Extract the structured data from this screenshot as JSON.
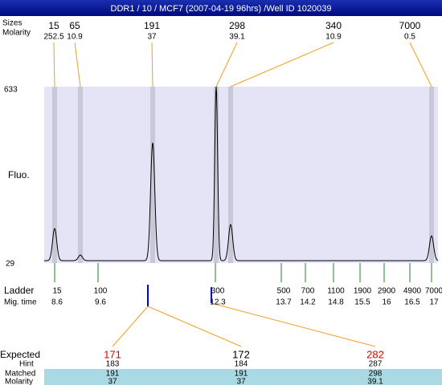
{
  "header": {
    "title": "DDR1 / 10 / MCF7 (2007-04-19 96hrs) /Well ID 1020039"
  },
  "peaks": {
    "size_label": "Sizes",
    "molarity_label": "Molarity",
    "items": [
      {
        "size": 15,
        "molarity": 252.5
      },
      {
        "size": 65,
        "molarity": 10.9
      },
      {
        "size": 191,
        "molarity": 37
      },
      {
        "size": 298,
        "molarity": 39.1
      },
      {
        "size": 340,
        "molarity": 10.9
      },
      {
        "size": 7000,
        "molarity": 0.5
      }
    ]
  },
  "y_axis": {
    "label": "Fluo.",
    "max": 633,
    "min": 29
  },
  "ladder": {
    "label": "Ladder",
    "time_label": "Mig. time",
    "items": [
      {
        "size": 15,
        "time": 8.6
      },
      {
        "size": 100,
        "time": 9.6
      },
      {
        "size": 300,
        "time": 12.3
      },
      {
        "size": 500,
        "time": 13.7
      },
      {
        "size": 700,
        "time": 14.2
      },
      {
        "size": 1100,
        "time": 14.8
      },
      {
        "size": 1900,
        "time": 15.5
      },
      {
        "size": 2900,
        "time": 16
      },
      {
        "size": 4900,
        "time": 16.5
      },
      {
        "size": 7000,
        "time": 17
      }
    ]
  },
  "matches": {
    "expected_label": "Expected",
    "hint_label": "Hint",
    "matched_label": "Matched",
    "molarity_label": "Molarity",
    "columns": [
      {
        "expected": 171,
        "color": "#e00000",
        "hint": 183,
        "matched": 191,
        "molarity": 37
      },
      {
        "expected": 172,
        "color": "#000000",
        "hint": 184,
        "matched": 191,
        "molarity": 37
      },
      {
        "expected": 282,
        "color": "#e00000",
        "hint": 287,
        "matched": 298,
        "molarity": 39.1
      }
    ]
  }
}
